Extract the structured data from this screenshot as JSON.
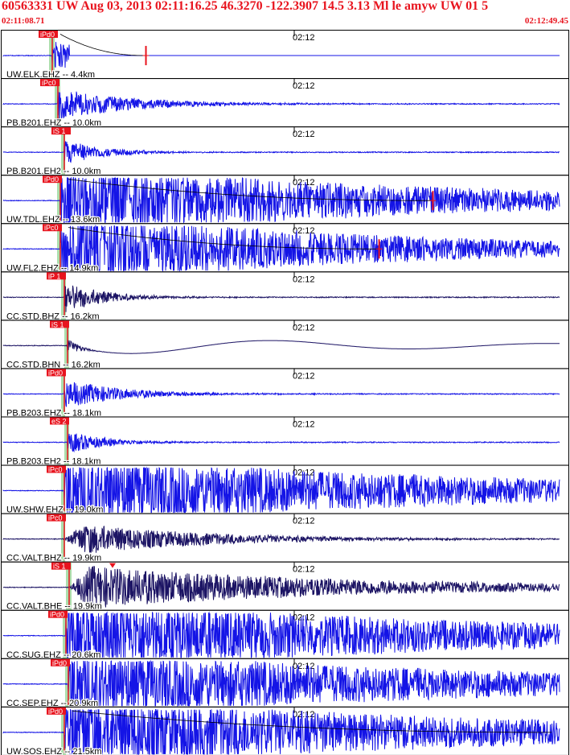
{
  "header": {
    "title": "60563331 UW Aug 03, 2013 02:11:16.25    46.3270 -122.3907 14.5 3.13 Ml le amyw UW 01    5",
    "start_time": "02:11:08.71",
    "end_time": "02:12:49.45"
  },
  "colors": {
    "header_text": "#e8141e",
    "trace_blue": "#1414e6",
    "trace_dark": "#1c1464",
    "pick_flag": "#e8141e",
    "pick_window": "#9ed89e",
    "panel_border": "#000000",
    "coda_line": "#e8141e"
  },
  "chart_data": {
    "type": "line",
    "title": "",
    "xlabel": "",
    "ylabel": "",
    "time_marker_label": "02:12",
    "panels": [
      {
        "label": "UW.ELK.EHZ -- 4.4km",
        "pick": "iPd0",
        "pick_kind": "P",
        "color": "blue",
        "amp": 0.55,
        "shape": "impulsive",
        "duration": 0.1,
        "cut": 0.12,
        "has_coda": true,
        "coda_mark": 0.255
      },
      {
        "label": "PB.B201.EHZ -- 10.0km",
        "pick": "iPc0",
        "pick_kind": "P",
        "color": "blue",
        "amp": 0.55,
        "shape": "impulsive",
        "duration": 0.15
      },
      {
        "label": "PB.B201.EH2 -- 10.0km",
        "pick": "iS 1",
        "pick_kind": "S",
        "color": "blue",
        "amp": 0.45,
        "shape": "impulsive",
        "duration": 0.08
      },
      {
        "label": "UW.TDL.EHZ -- 13.6km",
        "pick": "iPd0",
        "pick_kind": "P",
        "color": "blue",
        "amp": 1.0,
        "shape": "saturated",
        "duration": 0.75,
        "has_coda": true,
        "coda_mark": 0.762
      },
      {
        "label": "UW.FL2.EHZ -- 14.9km",
        "pick": "iPc0",
        "pick_kind": "P",
        "color": "blue",
        "amp": 1.0,
        "shape": "saturated",
        "duration": 0.65,
        "has_coda": true,
        "coda_mark": 0.667
      },
      {
        "label": "CC.STD.BHZ -- 16.2km",
        "pick": "iP 1",
        "pick_kind": "P",
        "color": "dark",
        "amp": 0.55,
        "shape": "impulsive",
        "duration": 0.08
      },
      {
        "label": "CC.STD.BHN -- 16.2km",
        "pick": "iS 1",
        "pick_kind": "S",
        "color": "dark",
        "amp": 0.45,
        "shape": "longperiod",
        "duration": 0.5
      },
      {
        "label": "PB.B203.EHZ -- 18.1km",
        "pick": "iPd0",
        "pick_kind": "P",
        "color": "blue",
        "amp": 0.5,
        "shape": "impulsive",
        "duration": 0.12
      },
      {
        "label": "PB.B203.EH2 -- 18.1km",
        "pick": "eS 2",
        "pick_kind": "S",
        "color": "blue",
        "amp": 0.4,
        "shape": "impulsive",
        "duration": 0.08
      },
      {
        "label": "UW.SHW.EHZ -- 19.0km",
        "pick": "iPc0",
        "pick_kind": "P",
        "color": "blue",
        "amp": 1.0,
        "shape": "saturated",
        "duration": 0.85
      },
      {
        "label": "CC.VALT.BHZ -- 19.9km",
        "pick": "iPc0",
        "pick_kind": "P",
        "color": "dark",
        "amp": 0.55,
        "shape": "emergent",
        "duration": 0.25
      },
      {
        "label": "CC.VALT.BHE -- 19.9km",
        "pick": "iS 1",
        "pick_kind": "S",
        "color": "dark",
        "amp": 0.75,
        "shape": "emergent",
        "duration": 0.55
      },
      {
        "label": "CC.SUG.EHZ -- 20.6km",
        "pick": "iPd0",
        "pick_kind": "P",
        "color": "blue",
        "amp": 1.0,
        "shape": "saturated",
        "duration": 0.9
      },
      {
        "label": "CC.SEP.EHZ -- 20.9km",
        "pick": "iPd0",
        "pick_kind": "P",
        "color": "blue",
        "amp": 0.95,
        "shape": "saturated",
        "duration": 0.9
      },
      {
        "label": "UW.SOS.EHZ -- 21.5km",
        "pick": "iPd0",
        "pick_kind": "P",
        "color": "blue",
        "amp": 1.0,
        "shape": "saturated",
        "duration": 0.9,
        "has_coda": true
      }
    ]
  }
}
